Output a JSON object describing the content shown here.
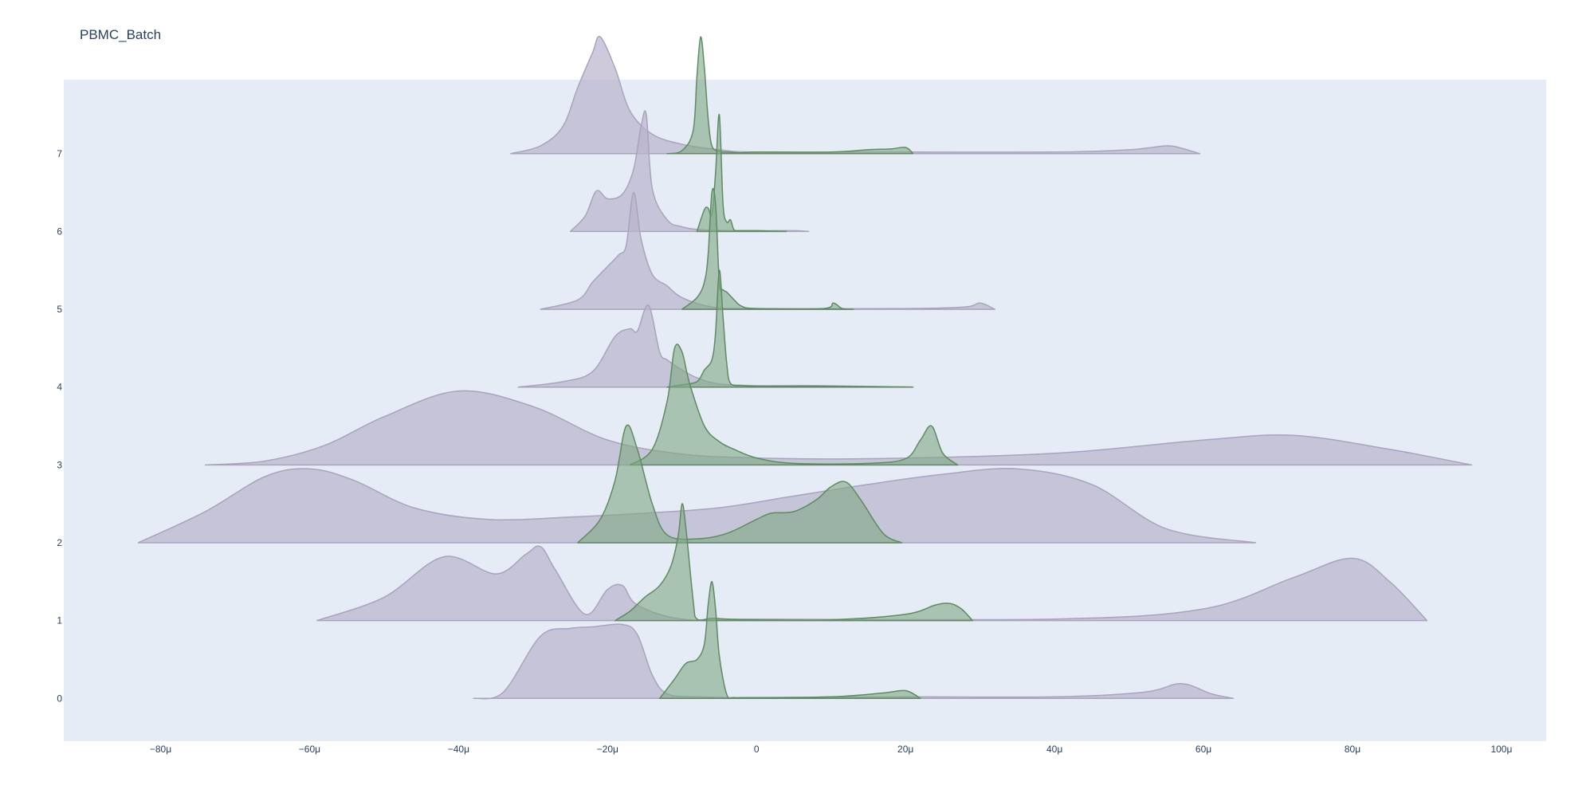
{
  "chart_data": {
    "type": "area",
    "subtype": "ridgeline",
    "title": "PBMC_Batch",
    "xlabel": "",
    "ylabel": "",
    "x_unit": "μ",
    "xlim": [
      -93,
      106
    ],
    "x_ticks": [
      -80,
      -60,
      -40,
      -20,
      0,
      20,
      40,
      60,
      80,
      100
    ],
    "x_tick_labels": [
      "−80μ",
      "−60μ",
      "−40μ",
      "−20μ",
      "0",
      "20μ",
      "40μ",
      "60μ",
      "80μ",
      "100μ"
    ],
    "categories": [
      "0",
      "1",
      "2",
      "3",
      "4",
      "5",
      "6",
      "7"
    ],
    "ylim": [
      -0.55,
      7.95
    ],
    "grid": false,
    "legend": "none",
    "colors": {
      "purple": "#b9b4cc",
      "green": "#7fa884",
      "plot_bg": "#e5ecf6",
      "text": "#2a3f5f"
    },
    "series": [
      {
        "color": "purple",
        "ridges": [
          {
            "level": 0,
            "x": [
              -38,
              -34,
              -29,
              -25,
              -22,
              -18,
              -16,
              -14,
              -12,
              -8,
              0,
              20,
              40,
              52,
              57,
              61,
              64
            ],
            "y": [
              0,
              0.08,
              0.8,
              0.9,
              0.92,
              0.95,
              0.82,
              0.3,
              0.06,
              0.02,
              0.01,
              0.02,
              0.02,
              0.08,
              0.19,
              0.06,
              0
            ]
          },
          {
            "level": 1,
            "x": [
              -59,
              -50,
              -42,
              -35,
              -31,
              -29,
              -27,
              -23,
              -20,
              -18,
              -16,
              -10,
              0,
              40,
              60,
              72,
              80,
              85,
              90
            ],
            "y": [
              0,
              0.3,
              0.82,
              0.6,
              0.85,
              0.95,
              0.65,
              0.08,
              0.4,
              0.45,
              0.2,
              0.02,
              0.02,
              0.02,
              0.15,
              0.55,
              0.8,
              0.5,
              0
            ]
          },
          {
            "level": 2,
            "x": [
              -83,
              -74,
              -66,
              -60,
              -54,
              -46,
              -36,
              -25,
              -15,
              -5,
              5,
              15,
              25,
              35,
              45,
              55,
              67
            ],
            "y": [
              0,
              0.4,
              0.85,
              0.95,
              0.8,
              0.45,
              0.3,
              0.33,
              0.38,
              0.45,
              0.6,
              0.75,
              0.88,
              0.95,
              0.75,
              0.18,
              0
            ]
          },
          {
            "level": 3,
            "x": [
              -74,
              -66,
              -58,
              -50,
              -40,
              -30,
              -20,
              -10,
              0,
              15,
              40,
              60,
              72,
              85,
              96
            ],
            "y": [
              0,
              0.05,
              0.25,
              0.62,
              0.95,
              0.75,
              0.32,
              0.14,
              0.09,
              0.08,
              0.15,
              0.32,
              0.38,
              0.2,
              0
            ]
          },
          {
            "level": 4,
            "x": [
              -32,
              -26,
              -22,
              -19,
              -17,
              -16,
              -14.5,
              -13,
              -12,
              -10,
              -8,
              -5,
              0,
              8,
              21
            ],
            "y": [
              0,
              0.07,
              0.2,
              0.65,
              0.75,
              0.72,
              1.05,
              0.45,
              0.35,
              0.22,
              0.12,
              0.04,
              0.02,
              0.02,
              0
            ]
          },
          {
            "level": 5,
            "x": [
              -29,
              -24,
              -22,
              -20,
              -18.5,
              -17.5,
              -16.5,
              -15.5,
              -14,
              -12,
              -10,
              -6,
              0,
              20,
              28,
              30,
              32
            ],
            "y": [
              0,
              0.12,
              0.35,
              0.55,
              0.7,
              0.82,
              1.5,
              0.9,
              0.45,
              0.3,
              0.15,
              0.03,
              0.01,
              0.01,
              0.03,
              0.08,
              0
            ]
          },
          {
            "level": 6,
            "x": [
              -25,
              -23,
              -21.5,
              -20,
              -18,
              -16.5,
              -15.5,
              -14.8,
              -14,
              -12,
              -10,
              -7,
              0,
              5,
              7
            ],
            "y": [
              0,
              0.2,
              0.52,
              0.42,
              0.48,
              0.8,
              1.35,
              1.5,
              0.55,
              0.15,
              0.06,
              0.02,
              0.01,
              0.01,
              0
            ]
          },
          {
            "level": 7,
            "x": [
              -33,
              -29,
              -26,
              -24,
              -22,
              -21,
              -19,
              -17,
              -14,
              -10,
              -5,
              0,
              20,
              40,
              50,
              55,
              57,
              59.5
            ],
            "y": [
              0,
              0.1,
              0.35,
              0.85,
              1.3,
              1.5,
              1.1,
              0.55,
              0.25,
              0.12,
              0.05,
              0.02,
              0.02,
              0.02,
              0.05,
              0.1,
              0.07,
              0
            ]
          }
        ]
      },
      {
        "color": "green",
        "ridges": [
          {
            "level": 0,
            "x": [
              -13,
              -11,
              -9.5,
              -8,
              -7,
              -6.5,
              -6,
              -5.5,
              -5,
              -4,
              -3,
              -1,
              10,
              17,
              20,
              22
            ],
            "y": [
              0,
              0.25,
              0.45,
              0.5,
              0.7,
              1.2,
              1.5,
              1.15,
              0.55,
              0.05,
              0.01,
              0.01,
              0.02,
              0.07,
              0.1,
              0
            ]
          },
          {
            "level": 1,
            "x": [
              -19,
              -17,
              -15,
              -13,
              -11.5,
              -10.5,
              -10,
              -9.5,
              -8.5,
              -8,
              -6,
              -4,
              0,
              10,
              20,
              24,
              26,
              27.5,
              29
            ],
            "y": [
              0,
              0.12,
              0.3,
              0.45,
              0.7,
              1.1,
              1.5,
              1.2,
              0.25,
              0.02,
              0.03,
              0.02,
              0.01,
              0.01,
              0.08,
              0.2,
              0.22,
              0.15,
              0
            ]
          },
          {
            "level": 2,
            "x": [
              -24,
              -21,
              -19,
              -17.5,
              -16,
              -14,
              -12,
              -8,
              -4,
              0,
              2,
              5,
              8,
              10,
              12,
              14,
              17,
              19.5
            ],
            "y": [
              0,
              0.3,
              0.8,
              1.5,
              1.2,
              0.5,
              0.1,
              0.05,
              0.12,
              0.3,
              0.38,
              0.4,
              0.55,
              0.72,
              0.78,
              0.55,
              0.12,
              0
            ]
          },
          {
            "level": 3,
            "x": [
              -17,
              -14,
              -12,
              -11,
              -10,
              -9,
              -7,
              -5,
              -3,
              0,
              5,
              15,
              20,
              22,
              23.5,
              25,
              27
            ],
            "y": [
              0,
              0.2,
              0.82,
              1.5,
              1.45,
              1.05,
              0.5,
              0.3,
              0.2,
              0.09,
              0.02,
              0.02,
              0.08,
              0.32,
              0.5,
              0.15,
              0
            ]
          },
          {
            "level": 4,
            "x": [
              -12,
              -10,
              -8,
              -7,
              -6,
              -5.5,
              -5,
              -4.5,
              -4,
              -3.5,
              -2,
              0,
              5,
              10,
              21
            ],
            "y": [
              0,
              0.03,
              0.07,
              0.22,
              0.35,
              0.7,
              1.5,
              0.9,
              0.3,
              0.05,
              0.02,
              0.01,
              0.01,
              0.01,
              0
            ]
          },
          {
            "level": 5,
            "x": [
              -10,
              -8,
              -7,
              -6.5,
              -6,
              -5.5,
              -5,
              -4.5,
              -4,
              -3,
              -2,
              0,
              9,
              10.3,
              11.5,
              13
            ],
            "y": [
              0,
              0.15,
              0.35,
              0.7,
              1.5,
              1.35,
              0.35,
              0.25,
              0.22,
              0.12,
              0.04,
              0.01,
              0.01,
              0.08,
              0.01,
              0
            ]
          },
          {
            "level": 6,
            "x": [
              -8,
              -7,
              -6.5,
              -6,
              -5.5,
              -5,
              -4.5,
              -4,
              -3.5,
              -3,
              -2,
              0,
              4
            ],
            "y": [
              0,
              0.28,
              0.3,
              0.22,
              0.75,
              1.5,
              0.35,
              0.12,
              0.15,
              0.02,
              0.01,
              0.01,
              0
            ]
          },
          {
            "level": 7,
            "x": [
              -12,
              -10,
              -8.5,
              -8,
              -7.5,
              -7,
              -6.5,
              -6,
              -5,
              -4,
              -2,
              0,
              10,
              15,
              18,
              20,
              21
            ],
            "y": [
              0,
              0.04,
              0.3,
              1.0,
              1.5,
              1.1,
              0.45,
              0.1,
              0.03,
              0.02,
              0.01,
              0.02,
              0.02,
              0.05,
              0.06,
              0.08,
              0
            ]
          }
        ]
      }
    ]
  }
}
